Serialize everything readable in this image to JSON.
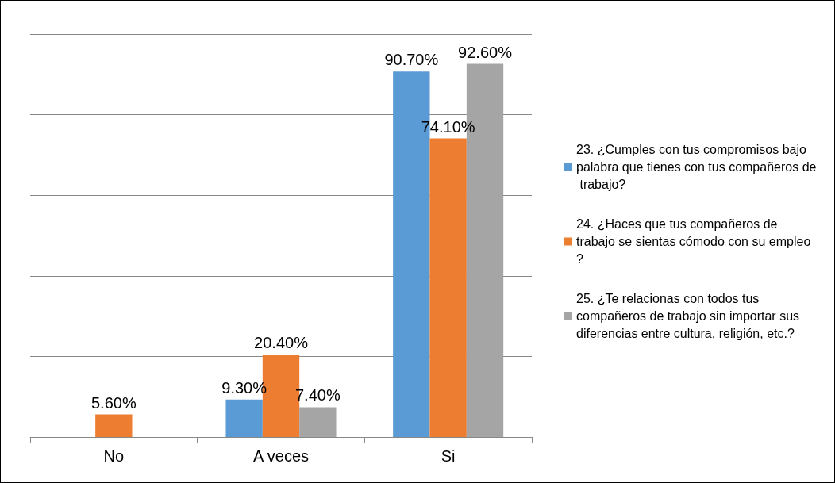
{
  "chart_data": {
    "type": "bar",
    "categories": [
      "No",
      "A veces",
      "Si"
    ],
    "series": [
      {
        "name": "23. ¿Cumples con tus compromisos bajo palabra que tienes con tus compañeros de trabajo?",
        "color": "#5b9bd5",
        "values": [
          null,
          9.3,
          90.7
        ],
        "value_labels": [
          null,
          "9.30%",
          "90.70%"
        ]
      },
      {
        "name": "24. ¿Haces que tus compañeros de trabajo se sientas cómodo con su empleo?",
        "color": "#ed7d31",
        "values": [
          5.6,
          20.4,
          74.1
        ],
        "value_labels": [
          "5.60%",
          "20.40%",
          "74.10%"
        ]
      },
      {
        "name": "25. ¿Te relacionas con todos tus compañeros de trabajo sin importar sus diferencias entre cultura, religión, etc.?",
        "color": "#a5a5a5",
        "values": [
          null,
          7.4,
          92.6
        ],
        "value_labels": [
          null,
          "7.40%",
          "92.60%"
        ]
      }
    ],
    "ylim": [
      0,
      100
    ],
    "yticks": [
      {
        "value": 0,
        "label": null
      },
      {
        "value": 10,
        "label": null
      },
      {
        "value": 20,
        "label": null
      },
      {
        "value": 30,
        "label": null
      },
      {
        "value": 40,
        "label": null
      },
      {
        "value": 50,
        "label": null
      },
      {
        "value": 60,
        "label": null
      },
      {
        "value": 70,
        "label": null
      },
      {
        "value": 80,
        "label": null
      },
      {
        "value": 90,
        "label": null
      },
      {
        "value": 100,
        "label": null
      }
    ],
    "tick_labels": "x",
    "grid": "y",
    "legend": "right"
  }
}
